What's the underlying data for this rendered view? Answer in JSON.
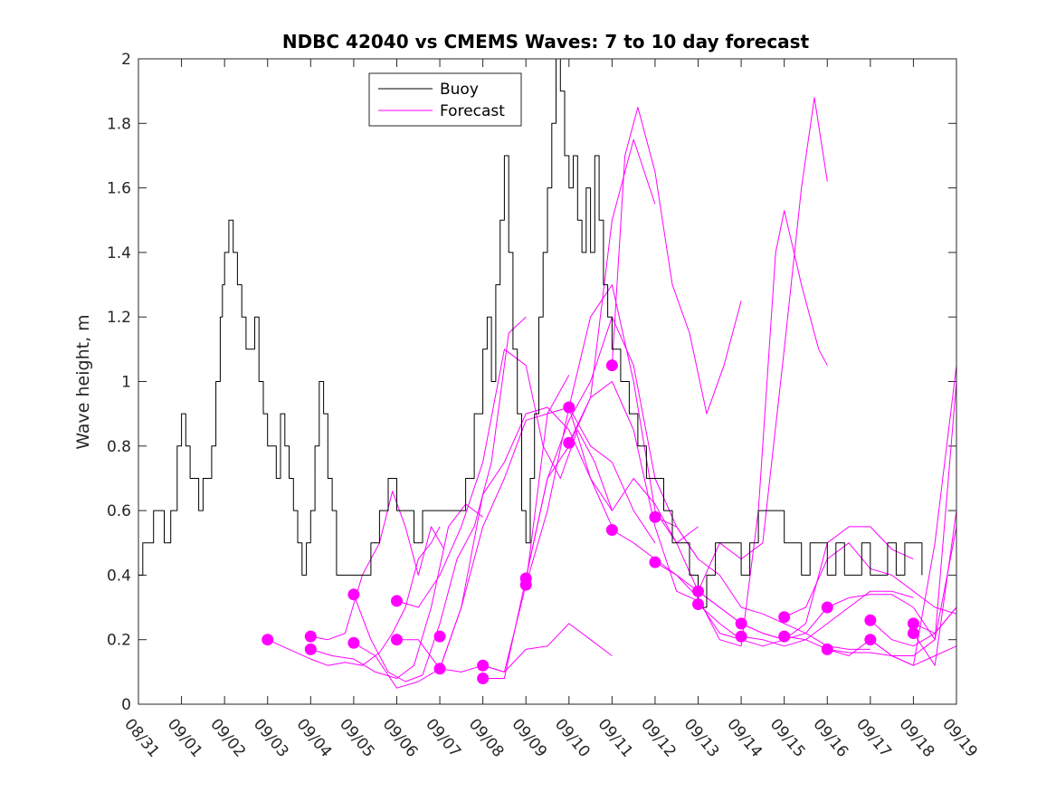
{
  "chart_data": {
    "type": "line",
    "title": "NDBC 42040 vs CMEMS Waves: 7 to 10 day forecast",
    "ylabel": "Wave height, m",
    "xlabel": "",
    "ylim": [
      0,
      2
    ],
    "xlim": [
      0,
      19
    ],
    "x_unit": "days since 08/31",
    "x_ticks": [
      "08/31",
      "09/01",
      "09/02",
      "09/03",
      "09/04",
      "09/05",
      "09/06",
      "09/07",
      "09/08",
      "09/09",
      "09/10",
      "09/11",
      "09/12",
      "09/13",
      "09/14",
      "09/15",
      "09/16",
      "09/17",
      "09/18",
      "09/19"
    ],
    "y_ticks": [
      "0",
      "0.2",
      "0.4",
      "0.6",
      "0.8",
      "1",
      "1.2",
      "1.4",
      "1.6",
      "1.8",
      "2"
    ],
    "legend": {
      "position": "top-center",
      "entries": [
        {
          "label": "Buoy",
          "color": "#000000"
        },
        {
          "label": "Forecast",
          "color": "#ff00ff"
        }
      ]
    },
    "series": [
      {
        "name": "Buoy",
        "color": "#000000",
        "x": [
          0.0,
          0.1,
          0.25,
          0.35,
          0.45,
          0.6,
          0.75,
          0.9,
          1.0,
          1.1,
          1.2,
          1.3,
          1.4,
          1.5,
          1.6,
          1.7,
          1.8,
          1.9,
          1.95,
          2.0,
          2.1,
          2.2,
          2.3,
          2.4,
          2.5,
          2.6,
          2.7,
          2.8,
          2.9,
          3.0,
          3.1,
          3.2,
          3.3,
          3.4,
          3.5,
          3.6,
          3.7,
          3.8,
          3.9,
          4.0,
          4.1,
          4.2,
          4.3,
          4.4,
          4.5,
          4.6,
          4.7,
          4.8,
          4.9,
          5.0,
          5.2,
          5.4,
          5.6,
          5.8,
          6.0,
          6.2,
          6.4,
          6.6,
          6.8,
          7.0,
          7.2,
          7.4,
          7.6,
          7.8,
          8.0,
          8.1,
          8.2,
          8.3,
          8.4,
          8.5,
          8.6,
          8.7,
          8.8,
          8.9,
          9.0,
          9.1,
          9.2,
          9.3,
          9.4,
          9.5,
          9.6,
          9.7,
          9.8,
          9.9,
          10.0,
          10.1,
          10.2,
          10.3,
          10.4,
          10.5,
          10.6,
          10.7,
          10.8,
          10.9,
          11.0,
          11.2,
          11.4,
          11.6,
          11.8,
          12.0,
          12.2,
          12.4,
          12.6,
          12.8,
          13.0,
          13.2,
          13.4,
          13.6,
          13.8,
          14.0,
          14.2,
          14.4,
          14.6,
          14.8,
          15.0,
          15.2,
          15.4,
          15.6,
          15.8,
          16.0,
          16.2,
          16.4,
          16.6,
          16.8,
          17.0,
          17.2,
          17.4,
          17.6,
          17.8,
          18.0,
          18.2
        ],
        "y": [
          0.4,
          0.5,
          0.5,
          0.6,
          0.6,
          0.5,
          0.6,
          0.8,
          0.9,
          0.8,
          0.7,
          0.7,
          0.6,
          0.7,
          0.7,
          0.8,
          1.0,
          1.2,
          1.3,
          1.4,
          1.5,
          1.4,
          1.3,
          1.2,
          1.1,
          1.1,
          1.2,
          1.0,
          0.9,
          0.8,
          0.8,
          0.7,
          0.9,
          0.8,
          0.7,
          0.6,
          0.5,
          0.4,
          0.5,
          0.6,
          0.8,
          1.0,
          0.9,
          0.7,
          0.6,
          0.4,
          0.4,
          0.4,
          0.4,
          0.4,
          0.4,
          0.5,
          0.6,
          0.7,
          0.6,
          0.6,
          0.5,
          0.6,
          0.6,
          0.6,
          0.6,
          0.6,
          0.7,
          0.9,
          1.1,
          1.2,
          1.0,
          1.3,
          1.5,
          1.7,
          1.4,
          1.1,
          0.9,
          0.6,
          0.5,
          0.7,
          0.9,
          1.2,
          1.4,
          1.6,
          1.8,
          2.0,
          1.9,
          1.7,
          1.6,
          1.7,
          1.5,
          1.4,
          1.6,
          1.4,
          1.7,
          1.5,
          1.3,
          1.2,
          1.1,
          1.0,
          0.9,
          0.8,
          0.7,
          0.7,
          0.6,
          0.5,
          0.5,
          0.4,
          0.3,
          0.4,
          0.5,
          0.5,
          0.5,
          0.4,
          0.5,
          0.6,
          0.6,
          0.6,
          0.5,
          0.5,
          0.4,
          0.5,
          0.5,
          0.4,
          0.5,
          0.4,
          0.4,
          0.5,
          0.4,
          0.4,
          0.5,
          0.4,
          0.5,
          0.5,
          0.4
        ]
      },
      {
        "name": "Forecast",
        "color": "#ff00ff",
        "x": [
          3.0,
          3.5,
          4.0,
          4.4,
          4.8,
          5.2,
          5.6,
          5.9,
          6.2,
          6.5,
          6.8,
          7.0
        ],
        "y": [
          0.2,
          0.17,
          0.14,
          0.12,
          0.13,
          0.12,
          0.16,
          0.22,
          0.3,
          0.45,
          0.5,
          0.55
        ]
      },
      {
        "name": "Forecast",
        "color": "#ff00ff",
        "x": [
          4.0,
          4.4,
          4.8,
          5.2,
          5.6,
          5.9,
          6.2,
          6.5,
          6.8,
          7.1
        ],
        "y": [
          0.21,
          0.2,
          0.22,
          0.4,
          0.5,
          0.66,
          0.55,
          0.4,
          0.55,
          0.48
        ]
      },
      {
        "name": "Forecast",
        "color": "#ff00ff",
        "x": [
          4.0,
          4.5,
          5.0,
          5.5,
          6.0,
          6.4,
          6.8,
          7.2,
          7.6,
          8.0
        ],
        "y": [
          0.17,
          0.15,
          0.14,
          0.1,
          0.08,
          0.12,
          0.3,
          0.55,
          0.62,
          0.58
        ]
      },
      {
        "name": "Forecast",
        "color": "#ff00ff",
        "x": [
          5.0,
          5.4,
          5.8,
          6.2,
          6.6,
          7.0,
          7.4,
          7.8,
          8.2,
          8.6,
          9.0
        ],
        "y": [
          0.34,
          0.2,
          0.1,
          0.07,
          0.09,
          0.25,
          0.45,
          0.55,
          0.75,
          1.15,
          1.2
        ]
      },
      {
        "name": "Forecast",
        "color": "#ff00ff",
        "x": [
          5.0,
          5.5,
          6.0,
          6.5,
          7.0,
          7.5,
          8.0,
          8.5,
          9.0,
          9.5,
          10.0
        ],
        "y": [
          0.19,
          0.15,
          0.05,
          0.07,
          0.11,
          0.3,
          0.55,
          0.7,
          0.88,
          0.9,
          1.02
        ]
      },
      {
        "name": "Forecast",
        "color": "#ff00ff",
        "x": [
          6.0,
          6.5,
          7.0,
          7.5,
          8.0,
          8.5,
          9.0,
          9.4,
          9.8,
          10.2,
          10.6,
          11.0
        ],
        "y": [
          0.32,
          0.3,
          0.4,
          0.55,
          0.75,
          1.1,
          1.05,
          0.8,
          0.7,
          0.85,
          0.75,
          0.6
        ]
      },
      {
        "name": "Forecast",
        "color": "#ff00ff",
        "x": [
          6.0,
          6.5,
          7.0,
          7.5,
          8.0,
          8.5,
          9.0,
          9.5,
          10.0,
          10.5,
          11.0
        ],
        "y": [
          0.2,
          0.2,
          0.11,
          0.3,
          0.65,
          0.75,
          0.9,
          0.92,
          0.85,
          0.7,
          0.55
        ]
      },
      {
        "name": "Forecast",
        "color": "#ff00ff",
        "x": [
          7.0,
          7.5,
          8.0,
          8.5,
          9.0,
          9.5,
          10.0,
          10.5,
          11.0
        ],
        "y": [
          0.11,
          0.1,
          0.12,
          0.1,
          0.17,
          0.18,
          0.25,
          0.2,
          0.15
        ]
      },
      {
        "name": "Forecast",
        "color": "#ff00ff",
        "x": [
          8.0,
          8.5,
          9.0,
          9.5,
          10.0,
          10.5,
          11.0,
          11.5,
          12.0
        ],
        "y": [
          0.12,
          0.1,
          0.37,
          0.6,
          0.92,
          0.8,
          0.75,
          0.6,
          0.5
        ]
      },
      {
        "name": "Forecast",
        "color": "#ff00ff",
        "x": [
          8.0,
          8.5,
          9.0,
          9.5,
          10.0,
          10.5,
          11.0,
          11.5,
          12.0
        ],
        "y": [
          0.08,
          0.08,
          0.39,
          0.7,
          0.8,
          0.95,
          1.5,
          1.75,
          1.55
        ]
      },
      {
        "name": "Forecast",
        "color": "#ff00ff",
        "x": [
          9.0,
          9.5,
          10.0,
          10.5,
          11.0,
          11.5,
          12.0,
          12.5,
          13.0
        ],
        "y": [
          0.39,
          0.7,
          0.88,
          1.0,
          1.2,
          1.05,
          0.7,
          0.55,
          0.45
        ]
      },
      {
        "name": "Forecast",
        "color": "#ff00ff",
        "x": [
          9.0,
          9.5,
          10.0,
          10.5,
          11.0,
          11.5,
          12.0,
          12.5,
          13.0
        ],
        "y": [
          0.37,
          0.9,
          0.92,
          1.2,
          1.3,
          1.0,
          0.6,
          0.5,
          0.55
        ]
      },
      {
        "name": "Forecast",
        "color": "#ff00ff",
        "x": [
          10.0,
          10.5,
          11.0,
          11.5,
          12.0,
          12.5,
          13.0,
          13.5,
          14.0
        ],
        "y": [
          0.92,
          0.7,
          0.6,
          0.7,
          0.62,
          0.5,
          0.35,
          0.3,
          0.25
        ]
      },
      {
        "name": "Forecast",
        "color": "#ff00ff",
        "x": [
          10.0,
          10.5,
          11.0,
          11.5,
          12.0,
          12.5,
          13.0,
          13.5,
          14.0
        ],
        "y": [
          0.81,
          0.95,
          1.0,
          0.85,
          0.55,
          0.35,
          0.32,
          0.22,
          0.2
        ]
      },
      {
        "name": "Forecast",
        "color": "#ff00ff",
        "x": [
          11.0,
          11.3,
          11.6,
          12.0,
          12.4,
          12.8,
          13.2,
          13.6,
          14.0
        ],
        "y": [
          1.05,
          1.7,
          1.85,
          1.65,
          1.3,
          1.15,
          0.9,
          1.05,
          1.25
        ]
      },
      {
        "name": "Forecast",
        "color": "#ff00ff",
        "x": [
          11.0,
          11.5,
          12.0,
          12.5,
          13.0,
          13.5,
          14.0,
          14.5,
          15.0
        ],
        "y": [
          0.54,
          0.5,
          0.45,
          0.4,
          0.35,
          0.3,
          0.25,
          0.22,
          0.2
        ]
      },
      {
        "name": "Forecast",
        "color": "#ff00ff",
        "x": [
          12.0,
          12.5,
          13.0,
          13.5,
          14.0,
          14.5,
          15.0,
          15.5,
          16.0
        ],
        "y": [
          0.58,
          0.55,
          0.45,
          0.4,
          0.3,
          0.28,
          0.25,
          0.22,
          0.3
        ]
      },
      {
        "name": "Forecast",
        "color": "#ff00ff",
        "x": [
          12.0,
          12.5,
          13.0,
          13.5,
          14.0,
          14.4,
          14.8,
          15.0,
          15.4,
          15.8,
          16.0
        ],
        "y": [
          0.44,
          0.4,
          0.33,
          0.2,
          0.18,
          0.6,
          1.4,
          1.53,
          1.3,
          1.1,
          1.05
        ]
      },
      {
        "name": "Forecast",
        "color": "#ff00ff",
        "x": [
          13.0,
          13.5,
          14.0,
          14.5,
          15.0,
          15.4,
          15.7,
          16.0
        ],
        "y": [
          0.35,
          0.5,
          0.45,
          0.5,
          1.1,
          1.6,
          1.88,
          1.62
        ]
      },
      {
        "name": "Forecast",
        "color": "#ff00ff",
        "x": [
          13.0,
          13.5,
          14.0,
          14.5,
          15.0,
          15.5,
          16.0,
          16.5,
          17.0
        ],
        "y": [
          0.31,
          0.25,
          0.2,
          0.18,
          0.2,
          0.22,
          0.18,
          0.17,
          0.17
        ]
      },
      {
        "name": "Forecast",
        "color": "#ff00ff",
        "x": [
          14.0,
          14.5,
          15.0,
          15.5,
          16.0,
          16.5,
          17.0,
          17.5,
          18.0
        ],
        "y": [
          0.25,
          0.22,
          0.2,
          0.25,
          0.5,
          0.55,
          0.55,
          0.48,
          0.45
        ]
      },
      {
        "name": "Forecast",
        "color": "#ff00ff",
        "x": [
          14.0,
          14.5,
          15.0,
          15.5,
          16.0,
          16.5,
          17.0,
          17.5,
          18.0
        ],
        "y": [
          0.21,
          0.2,
          0.18,
          0.2,
          0.25,
          0.3,
          0.35,
          0.35,
          0.33
        ]
      },
      {
        "name": "Forecast",
        "color": "#ff00ff",
        "x": [
          15.0,
          15.5,
          16.0,
          16.5,
          17.0,
          17.5,
          18.0,
          18.5,
          19.0
        ],
        "y": [
          0.27,
          0.3,
          0.45,
          0.5,
          0.42,
          0.4,
          0.35,
          0.3,
          0.28
        ]
      },
      {
        "name": "Forecast",
        "color": "#ff00ff",
        "x": [
          15.0,
          15.5,
          16.0,
          16.5,
          17.0,
          17.5,
          18.0,
          18.5,
          19.0
        ],
        "y": [
          0.21,
          0.2,
          0.17,
          0.16,
          0.16,
          0.15,
          0.12,
          0.15,
          0.18
        ]
      },
      {
        "name": "Forecast",
        "color": "#ff00ff",
        "x": [
          16.0,
          16.5,
          17.0,
          17.5,
          18.0,
          18.5,
          19.0
        ],
        "y": [
          0.3,
          0.33,
          0.34,
          0.34,
          0.3,
          0.2,
          0.55
        ]
      },
      {
        "name": "Forecast",
        "color": "#ff00ff",
        "x": [
          16.0,
          16.5,
          17.0,
          17.5,
          18.0,
          18.5,
          19.0
        ],
        "y": [
          0.17,
          0.15,
          0.2,
          0.15,
          0.12,
          0.5,
          1.05
        ]
      },
      {
        "name": "Forecast",
        "color": "#ff00ff",
        "x": [
          17.0,
          17.5,
          18.0,
          18.5,
          19.0
        ],
        "y": [
          0.26,
          0.2,
          0.18,
          0.22,
          0.3
        ]
      },
      {
        "name": "Forecast",
        "color": "#ff00ff",
        "x": [
          17.0,
          17.5,
          18.0,
          18.5,
          19.0
        ],
        "y": [
          0.2,
          0.15,
          0.15,
          0.2,
          1.0
        ]
      },
      {
        "name": "Forecast",
        "color": "#ff00ff",
        "x": [
          18.0,
          18.5,
          19.0
        ],
        "y": [
          0.25,
          0.22,
          0.3
        ]
      },
      {
        "name": "Forecast",
        "color": "#ff00ff",
        "x": [
          18.0,
          18.5,
          19.0
        ],
        "y": [
          0.22,
          0.12,
          0.6
        ]
      }
    ],
    "forecast_start_markers": {
      "color": "#ff00ff",
      "points": [
        {
          "x": 3.0,
          "y": 0.2
        },
        {
          "x": 4.0,
          "y": 0.21
        },
        {
          "x": 4.0,
          "y": 0.17
        },
        {
          "x": 5.0,
          "y": 0.34
        },
        {
          "x": 5.0,
          "y": 0.19
        },
        {
          "x": 6.0,
          "y": 0.32
        },
        {
          "x": 6.0,
          "y": 0.2
        },
        {
          "x": 7.0,
          "y": 0.21
        },
        {
          "x": 7.0,
          "y": 0.11
        },
        {
          "x": 8.0,
          "y": 0.12
        },
        {
          "x": 8.0,
          "y": 0.08
        },
        {
          "x": 9.0,
          "y": 0.39
        },
        {
          "x": 9.0,
          "y": 0.37
        },
        {
          "x": 10.0,
          "y": 0.92
        },
        {
          "x": 10.0,
          "y": 0.81
        },
        {
          "x": 11.0,
          "y": 1.05
        },
        {
          "x": 11.0,
          "y": 0.54
        },
        {
          "x": 12.0,
          "y": 0.58
        },
        {
          "x": 12.0,
          "y": 0.44
        },
        {
          "x": 13.0,
          "y": 0.35
        },
        {
          "x": 13.0,
          "y": 0.31
        },
        {
          "x": 14.0,
          "y": 0.25
        },
        {
          "x": 14.0,
          "y": 0.21
        },
        {
          "x": 15.0,
          "y": 0.27
        },
        {
          "x": 15.0,
          "y": 0.21
        },
        {
          "x": 16.0,
          "y": 0.3
        },
        {
          "x": 16.0,
          "y": 0.17
        },
        {
          "x": 17.0,
          "y": 0.26
        },
        {
          "x": 17.0,
          "y": 0.2
        },
        {
          "x": 18.0,
          "y": 0.25
        },
        {
          "x": 18.0,
          "y": 0.22
        }
      ]
    }
  }
}
